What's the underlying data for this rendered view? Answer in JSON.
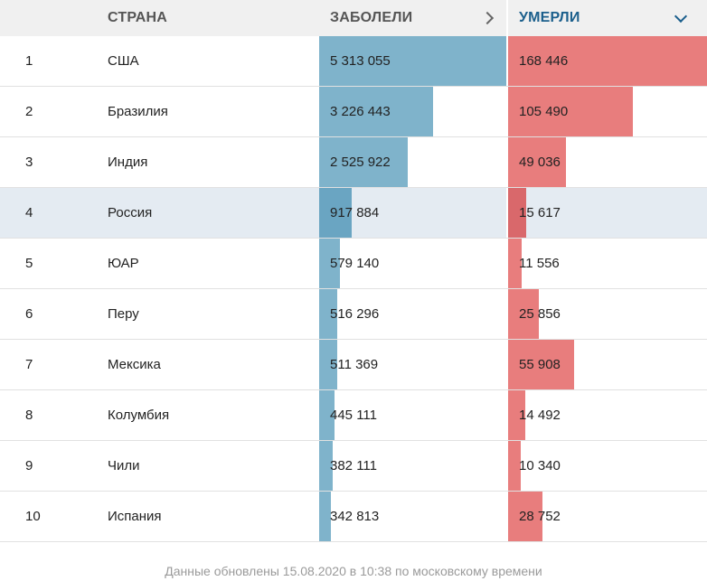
{
  "header": {
    "country_label": "СТРАНА",
    "cases_label": "ЗАБОЛЕЛИ",
    "deaths_label": "УМЕРЛИ"
  },
  "colors": {
    "cases_bar": "#7fb3cb",
    "deaths_bar": "#e87d7d",
    "sort_active": "#1b5f8c",
    "highlight_row": "#e4ebf2"
  },
  "icons": {
    "cases_sort": "chevron-right-icon",
    "deaths_sort": "chevron-down-icon"
  },
  "rows": [
    {
      "rank": "1",
      "country": "США",
      "cases": "5 313 055",
      "deaths": "168 446",
      "cases_n": 5313055,
      "deaths_n": 168446
    },
    {
      "rank": "2",
      "country": "Бразилия",
      "cases": "3 226 443",
      "deaths": "105 490",
      "cases_n": 3226443,
      "deaths_n": 105490
    },
    {
      "rank": "3",
      "country": "Индия",
      "cases": "2 525 922",
      "deaths": "49 036",
      "cases_n": 2525922,
      "deaths_n": 49036
    },
    {
      "rank": "4",
      "country": "Россия",
      "cases": "917 884",
      "deaths": "15 617",
      "cases_n": 917884,
      "deaths_n": 15617,
      "highlight": true
    },
    {
      "rank": "5",
      "country": "ЮАР",
      "cases": "579 140",
      "deaths": "11 556",
      "cases_n": 579140,
      "deaths_n": 11556
    },
    {
      "rank": "6",
      "country": "Перу",
      "cases": "516 296",
      "deaths": "25 856",
      "cases_n": 516296,
      "deaths_n": 25856
    },
    {
      "rank": "7",
      "country": "Мексика",
      "cases": "511 369",
      "deaths": "55 908",
      "cases_n": 511369,
      "deaths_n": 55908
    },
    {
      "rank": "8",
      "country": "Колумбия",
      "cases": "445 111",
      "deaths": "14 492",
      "cases_n": 445111,
      "deaths_n": 14492
    },
    {
      "rank": "9",
      "country": "Чили",
      "cases": "382 111",
      "deaths": "10 340",
      "cases_n": 382111,
      "deaths_n": 10340
    },
    {
      "rank": "10",
      "country": "Испания",
      "cases": "342 813",
      "deaths": "28 752",
      "cases_n": 342813,
      "deaths_n": 28752
    }
  ],
  "footer": "Данные обновлены 15.08.2020 в 10:38 по московскому времени"
}
